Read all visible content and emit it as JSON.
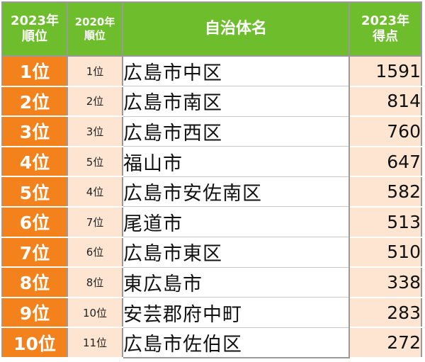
{
  "header": {
    "rank_2023_line1": "2023年",
    "rank_2023_line2": "順位",
    "rank_2020_line1": "2020年",
    "rank_2020_line2": "順位",
    "name": "自治体名",
    "score_line1": "2023年",
    "score_line2": "得点"
  },
  "colors": {
    "header_green": "#6ebd2c",
    "rank_orange": "#f4821c",
    "light_peach": "#fde5d2"
  },
  "chart_data": {
    "type": "table",
    "columns": [
      "2023年順位",
      "2020年順位",
      "自治体名",
      "2023年得点"
    ],
    "rows": [
      {
        "rank_2023": "1位",
        "rank_2020": "1位",
        "name": "広島市中区",
        "score": "1591"
      },
      {
        "rank_2023": "2位",
        "rank_2020": "2位",
        "name": "広島市南区",
        "score": "814"
      },
      {
        "rank_2023": "3位",
        "rank_2020": "3位",
        "name": "広島市西区",
        "score": "760"
      },
      {
        "rank_2023": "4位",
        "rank_2020": "5位",
        "name": "福山市",
        "score": "647"
      },
      {
        "rank_2023": "5位",
        "rank_2020": "4位",
        "name": "広島市安佐南区",
        "score": "582"
      },
      {
        "rank_2023": "6位",
        "rank_2020": "7位",
        "name": "尾道市",
        "score": "513"
      },
      {
        "rank_2023": "7位",
        "rank_2020": "6位",
        "name": "広島市東区",
        "score": "510"
      },
      {
        "rank_2023": "8位",
        "rank_2020": "8位",
        "name": "東広島市",
        "score": "338"
      },
      {
        "rank_2023": "9位",
        "rank_2020": "10位",
        "name": "安芸郡府中町",
        "score": "283"
      },
      {
        "rank_2023": "10位",
        "rank_2020": "11位",
        "name": "広島市佐伯区",
        "score": "272"
      }
    ]
  }
}
